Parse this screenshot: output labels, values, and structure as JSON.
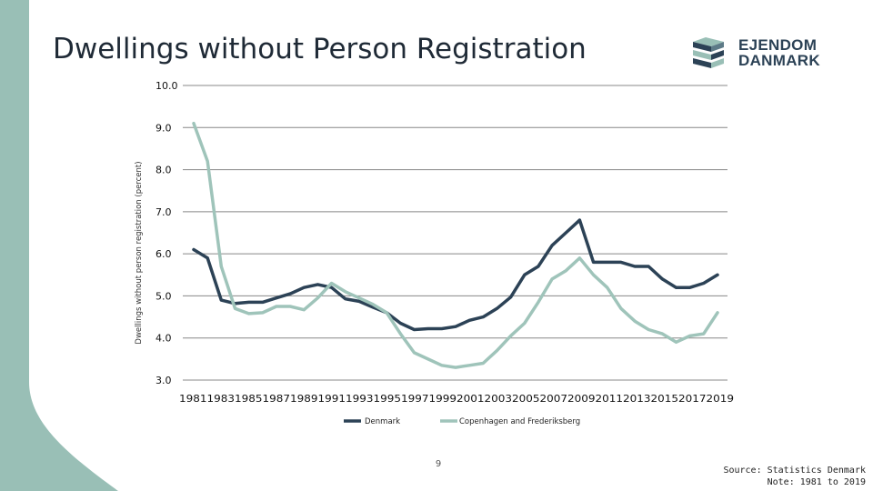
{
  "slide": {
    "title": "Dwellings without Person Registration",
    "page_number": "9",
    "source": "Source: Statistics Denmark",
    "note": "Note: 1981 to 2019"
  },
  "logo": {
    "line1": "EJENDOM",
    "line2": "DANMARK"
  },
  "colors": {
    "band": "#99bfb6",
    "denmark": "#2c4256",
    "copenhagen": "#9fc4ba",
    "grid": "#888888"
  },
  "chart_data": {
    "type": "line",
    "title": "",
    "xlabel": "",
    "ylabel": "Dwellings without person registration (percent)",
    "ylim": [
      3.0,
      10.0
    ],
    "y_ticks": [
      "3.0",
      "4.0",
      "5.0",
      "6.0",
      "7.0",
      "8.0",
      "9.0",
      "10.0"
    ],
    "x_tick_labels": [
      "1981",
      "1983",
      "1985",
      "1987",
      "1989",
      "1991",
      "1993",
      "1995",
      "1997",
      "1999",
      "2001",
      "2003",
      "2005",
      "2007",
      "2009",
      "2011",
      "2013",
      "2015",
      "2017",
      "2019"
    ],
    "x": [
      1981,
      1982,
      1983,
      1984,
      1985,
      1986,
      1987,
      1988,
      1989,
      1990,
      1991,
      1992,
      1993,
      1994,
      1995,
      1996,
      1997,
      1998,
      1999,
      2000,
      2001,
      2002,
      2003,
      2004,
      2005,
      2006,
      2007,
      2008,
      2009,
      2010,
      2011,
      2012,
      2013,
      2014,
      2015,
      2016,
      2017,
      2018,
      2019
    ],
    "grid": true,
    "legend": "bottom",
    "series": [
      {
        "name": "Denmark",
        "values": [
          6.1,
          5.9,
          4.9,
          4.82,
          4.85,
          4.85,
          4.95,
          5.05,
          5.2,
          5.27,
          5.2,
          4.93,
          4.87,
          4.73,
          4.6,
          4.35,
          4.2,
          4.22,
          4.22,
          4.27,
          4.42,
          4.5,
          4.7,
          4.97,
          5.5,
          5.7,
          6.2,
          6.5,
          6.8,
          5.8,
          5.8,
          5.8,
          5.7,
          5.7,
          5.4,
          5.2,
          5.2,
          5.3,
          5.5
        ]
      },
      {
        "name": "Copenhagen and Frederiksberg",
        "values": [
          9.1,
          8.2,
          5.7,
          4.7,
          4.58,
          4.6,
          4.75,
          4.75,
          4.67,
          4.95,
          5.3,
          5.1,
          4.95,
          4.8,
          4.6,
          4.1,
          3.65,
          3.5,
          3.35,
          3.3,
          3.35,
          3.4,
          3.7,
          4.05,
          4.35,
          4.85,
          5.4,
          5.6,
          5.9,
          5.5,
          5.2,
          4.7,
          4.4,
          4.2,
          4.1,
          3.9,
          4.05,
          4.1,
          4.6
        ]
      }
    ]
  }
}
